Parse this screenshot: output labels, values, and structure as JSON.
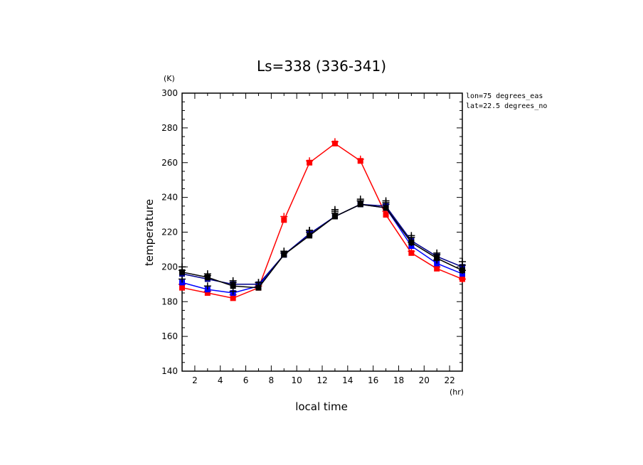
{
  "chart_data": {
    "type": "line",
    "title": "Ls=338 (336-341)",
    "xlabel": "local time",
    "ylabel": "temperature",
    "x_unit": "(hr)",
    "y_unit": "(K)",
    "xlim": [
      1,
      23
    ],
    "ylim": [
      140,
      300
    ],
    "x_ticks": [
      2,
      4,
      6,
      8,
      10,
      12,
      14,
      16,
      18,
      20,
      22
    ],
    "y_ticks": [
      140,
      160,
      180,
      200,
      220,
      240,
      260,
      280,
      300
    ],
    "annotations": [
      "lon=75 degrees_eas",
      "lat=22.5 degrees_no"
    ],
    "x": [
      1,
      3,
      5,
      7,
      9,
      11,
      13,
      15,
      17,
      19,
      21,
      23
    ],
    "series": [
      {
        "color": "#ff0000",
        "marker": "square",
        "values": [
          188,
          185,
          182,
          188,
          227,
          260,
          271,
          261,
          230,
          208,
          199,
          193
        ],
        "scatter": [
          190,
          186,
          184,
          189,
          229,
          261,
          272,
          262,
          232,
          209,
          200,
          193
        ]
      },
      {
        "color": "#0000ff",
        "marker": "square",
        "values": [
          191,
          187,
          185,
          189,
          207,
          219,
          229,
          236,
          234,
          212,
          202,
          196
        ],
        "scatter": [
          193,
          189,
          186,
          190,
          208,
          220,
          231,
          238,
          236,
          214,
          204,
          198
        ]
      },
      {
        "color": "#00008b",
        "marker": "square",
        "values": [
          196,
          193,
          190,
          190,
          207,
          219,
          229,
          236,
          235,
          215,
          206,
          200
        ],
        "scatter": [
          198,
          195,
          191,
          191,
          209,
          221,
          232,
          238,
          237,
          217,
          207,
          201
        ]
      },
      {
        "color": "#000000",
        "marker": "square",
        "values": [
          197,
          194,
          189,
          188,
          207,
          218,
          229,
          236,
          234,
          214,
          205,
          198
        ],
        "scatter": [
          200,
          196,
          192,
          191,
          209,
          221,
          233,
          239,
          238,
          218,
          208,
          203
        ]
      }
    ]
  }
}
